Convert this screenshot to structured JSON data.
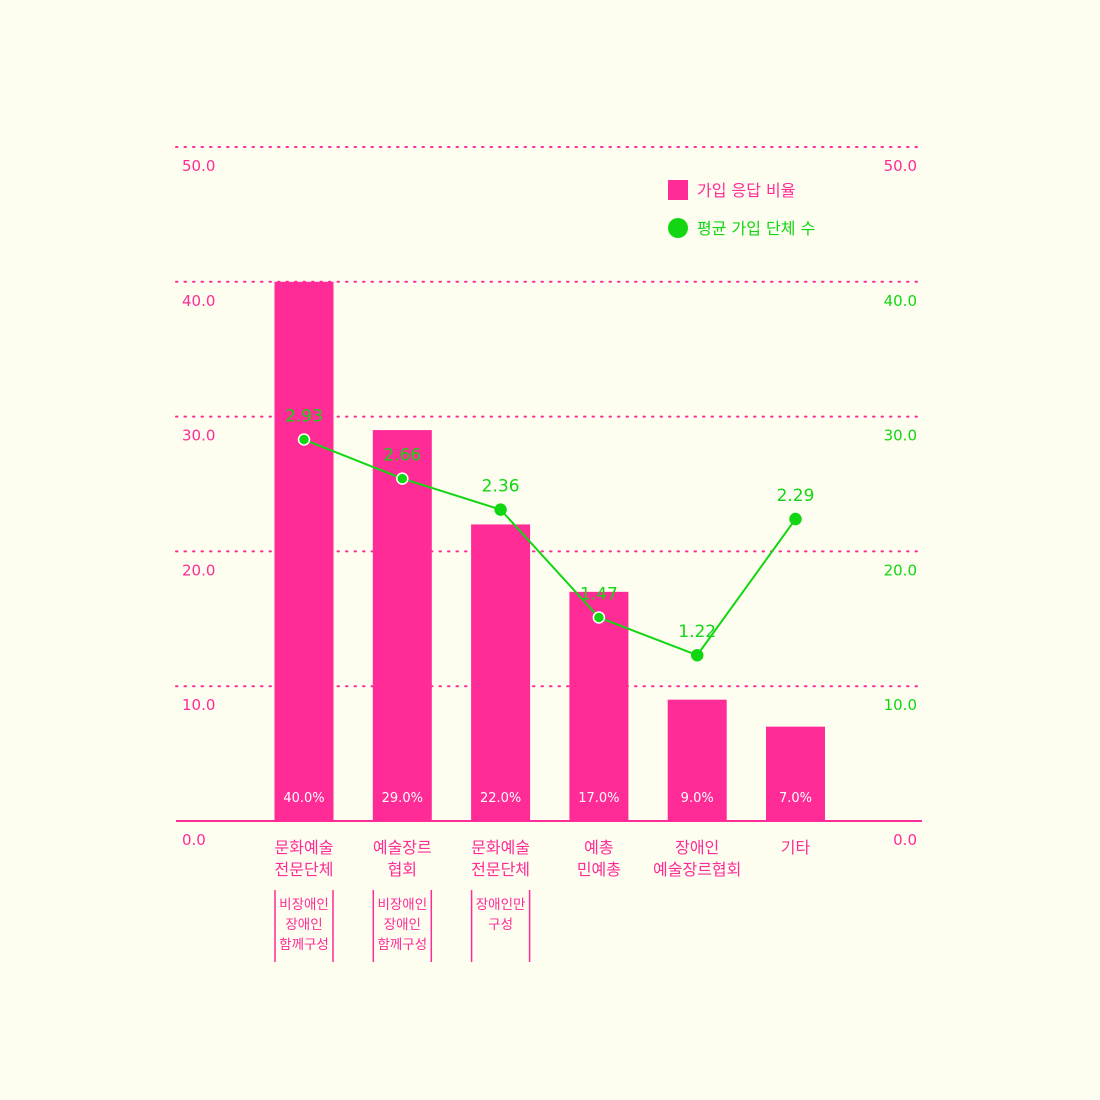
{
  "colors": {
    "background": "#fefef0",
    "bar": "#ff2b96",
    "line": "#11d611",
    "axis_left": "#ff2b96",
    "axis_right": "#11d611",
    "grid": "#ff2b96"
  },
  "legend": {
    "position": "top-right",
    "items": [
      {
        "label": "가입 응답 비율",
        "marker": "square",
        "color": "#ff2b96"
      },
      {
        "label": "평균 가입 단체 수",
        "marker": "circle",
        "color": "#11d611"
      }
    ]
  },
  "chart_data": {
    "type": "bar",
    "grid": true,
    "ylim": [
      0,
      50
    ],
    "y_ticks": [
      "0.0",
      "10.0",
      "20.0",
      "30.0",
      "40.0",
      "50.0"
    ],
    "y_right_ticks": [
      "0.0",
      "10.0",
      "20.0",
      "30.0",
      "40.0",
      "50.0"
    ],
    "categories": [
      {
        "lines": [
          "문화예술",
          "전문단체"
        ],
        "note": [
          "비장애인",
          "장애인",
          "함께구성"
        ]
      },
      {
        "lines": [
          "예술장르",
          "협회"
        ],
        "note": [
          "비장애인",
          "장애인",
          "함께구성"
        ]
      },
      {
        "lines": [
          "문화예술",
          "전문단체"
        ],
        "note": [
          "장애인만",
          "구성"
        ]
      },
      {
        "lines": [
          "예총",
          "민예총"
        ],
        "note": []
      },
      {
        "lines": [
          "장애인",
          "예술장르협회"
        ],
        "note": []
      },
      {
        "lines": [
          "기타"
        ],
        "note": []
      }
    ],
    "series": [
      {
        "name": "가입 응답 비율",
        "type": "bar",
        "axis": "left",
        "values": [
          40.0,
          29.0,
          22.0,
          17.0,
          9.0,
          7.0
        ],
        "labels": [
          "40.0%",
          "29.0%",
          "22.0%",
          "17.0%",
          "9.0%",
          "7.0%"
        ]
      },
      {
        "name": "평균 가입 단체 수",
        "type": "line",
        "axis": "left",
        "values": [
          2.93,
          2.66,
          2.36,
          1.47,
          1.22,
          2.29
        ],
        "labels": [
          "2.93",
          "2.66",
          "2.36",
          "1.47",
          "1.22",
          "2.29"
        ],
        "plotted_values": [
          28.3,
          25.4,
          23.1,
          15.1,
          12.3,
          22.4
        ]
      }
    ]
  }
}
